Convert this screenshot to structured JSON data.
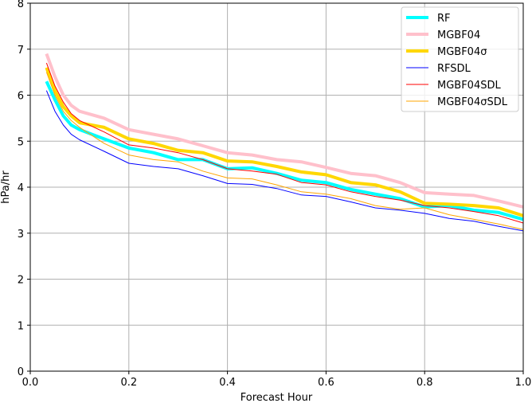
{
  "chart_data": {
    "type": "line",
    "title": "",
    "xlabel": "Forecast Hour",
    "ylabel": "hPa/hr",
    "xlim": [
      0,
      1
    ],
    "ylim": [
      0,
      8
    ],
    "xticks": [
      "0.0",
      "0.2",
      "0.4",
      "0.6",
      "0.8",
      "1.0"
    ],
    "xtick_values": [
      0,
      0.2,
      0.4,
      0.6,
      0.8,
      1.0
    ],
    "yticks": [
      "0",
      "1",
      "2",
      "3",
      "4",
      "5",
      "6",
      "7",
      "8"
    ],
    "ytick_values": [
      0,
      1,
      2,
      3,
      4,
      5,
      6,
      7,
      8
    ],
    "grid": true,
    "legend_position": "top-right",
    "x": [
      0.033,
      0.05,
      0.067,
      0.083,
      0.1,
      0.15,
      0.2,
      0.25,
      0.3,
      0.35,
      0.4,
      0.45,
      0.5,
      0.55,
      0.6,
      0.65,
      0.7,
      0.75,
      0.8,
      0.85,
      0.9,
      0.95,
      1.0
    ],
    "series": [
      {
        "name": "RF",
        "color": "#00ffff",
        "width": 4,
        "values": [
          6.3,
          5.9,
          5.55,
          5.35,
          5.25,
          5.05,
          4.85,
          4.75,
          4.6,
          4.6,
          4.4,
          4.42,
          4.3,
          4.15,
          4.1,
          3.95,
          3.85,
          3.75,
          3.57,
          3.6,
          3.5,
          3.45,
          3.3
        ]
      },
      {
        "name": "MGBF04",
        "color": "#ffc0cb",
        "width": 4,
        "values": [
          6.9,
          6.4,
          6.0,
          5.78,
          5.65,
          5.5,
          5.25,
          5.15,
          5.05,
          4.9,
          4.75,
          4.7,
          4.6,
          4.55,
          4.43,
          4.3,
          4.25,
          4.1,
          3.88,
          3.85,
          3.82,
          3.7,
          3.57
        ]
      },
      {
        "name": "MGBF04σ",
        "color": "#ffd700",
        "width": 4,
        "values": [
          6.6,
          6.1,
          5.75,
          5.55,
          5.4,
          5.3,
          5.05,
          4.95,
          4.8,
          4.75,
          4.57,
          4.55,
          4.45,
          4.33,
          4.27,
          4.1,
          4.05,
          3.9,
          3.65,
          3.63,
          3.6,
          3.55,
          3.38
        ]
      },
      {
        "name": "RFSDL",
        "color": "#0000ff",
        "width": 1,
        "values": [
          6.1,
          5.65,
          5.35,
          5.15,
          5.03,
          4.78,
          4.52,
          4.45,
          4.4,
          4.25,
          4.08,
          4.06,
          3.97,
          3.83,
          3.8,
          3.68,
          3.55,
          3.5,
          3.43,
          3.32,
          3.26,
          3.15,
          3.05
        ]
      },
      {
        "name": "MGBF04SDL",
        "color": "#ff0000",
        "width": 1,
        "values": [
          6.7,
          6.2,
          5.85,
          5.6,
          5.45,
          5.2,
          4.92,
          4.85,
          4.75,
          4.6,
          4.4,
          4.35,
          4.28,
          4.1,
          4.05,
          3.9,
          3.8,
          3.72,
          3.6,
          3.55,
          3.47,
          3.38,
          3.22
        ]
      },
      {
        "name": "MGBF04σSDL",
        "color": "#ffa500",
        "width": 1,
        "values": [
          6.5,
          6.0,
          5.65,
          5.45,
          5.3,
          4.95,
          4.7,
          4.6,
          4.55,
          4.35,
          4.2,
          4.18,
          4.05,
          3.9,
          3.85,
          3.75,
          3.6,
          3.52,
          3.55,
          3.4,
          3.3,
          3.2,
          3.08
        ]
      }
    ]
  }
}
